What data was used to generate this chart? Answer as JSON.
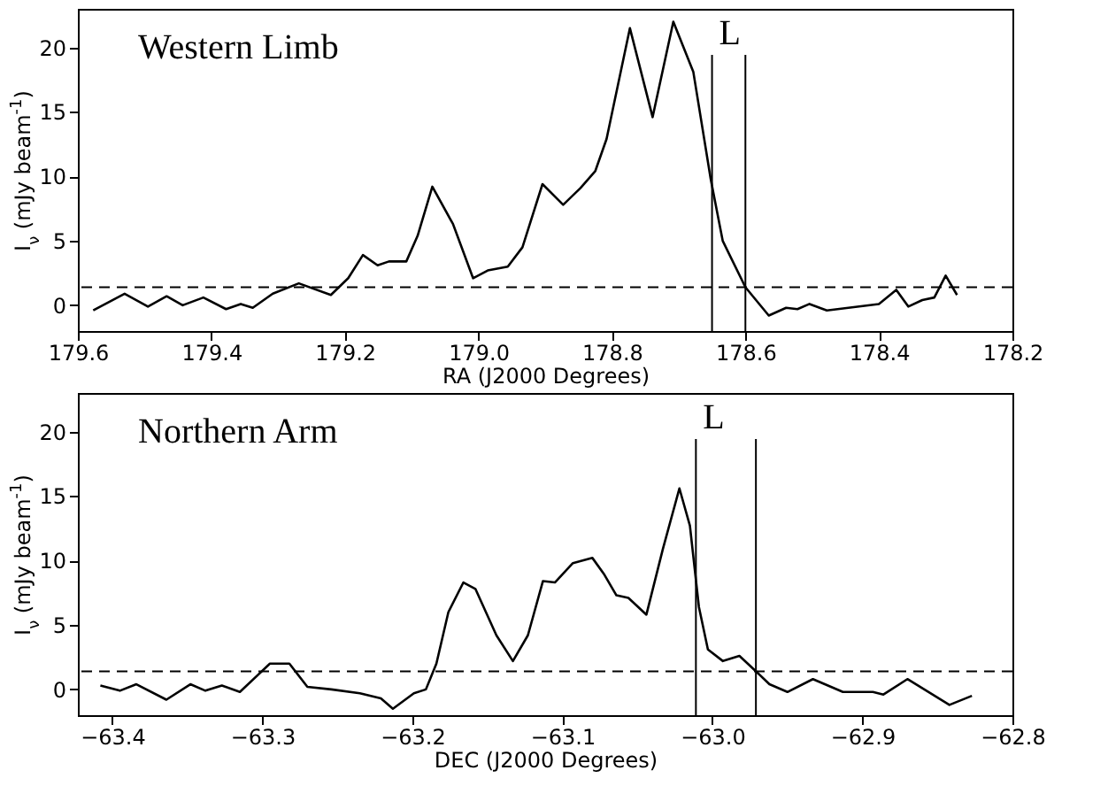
{
  "chart_data": [
    {
      "type": "line",
      "color": "#000000",
      "xlabel": "RA (J2000 Degrees)",
      "ylabel": "I$_{ν}$ (mJy beam$^{-1}$)",
      "x": [
        179.577,
        179.53,
        179.495,
        179.467,
        179.443,
        179.412,
        179.378,
        179.356,
        179.338,
        179.308,
        179.269,
        179.221,
        179.195,
        179.173,
        179.151,
        179.134,
        179.108,
        179.091,
        179.069,
        179.038,
        179.008,
        178.986,
        178.956,
        178.934,
        178.904,
        178.873,
        178.847,
        178.825,
        178.808,
        178.773,
        178.739,
        178.708,
        178.678,
        178.652,
        178.634,
        178.6,
        178.565,
        178.539,
        178.522,
        178.504,
        178.478,
        178.4,
        178.374,
        178.356,
        178.335,
        178.317,
        178.3,
        178.283
      ],
      "values": [
        -0.4,
        0.9,
        -0.1,
        0.7,
        0.0,
        0.6,
        -0.3,
        0.1,
        -0.2,
        0.9,
        1.7,
        0.8,
        2.1,
        3.9,
        3.1,
        3.4,
        3.4,
        5.4,
        9.2,
        6.3,
        2.1,
        2.7,
        3.0,
        4.5,
        9.4,
        7.8,
        9.1,
        10.4,
        12.9,
        21.5,
        14.6,
        22.0,
        18.1,
        9.8,
        5.0,
        1.4,
        -0.8,
        -0.2,
        -0.3,
        0.1,
        -0.4,
        0.1,
        1.2,
        -0.1,
        0.4,
        0.6,
        2.3,
        0.8
      ],
      "xlim": [
        179.6,
        178.2
      ],
      "xticks": [
        179.6,
        179.4,
        179.2,
        {
          "value": 179.0,
          "label": "179.0"
        },
        178.8,
        178.6,
        178.4,
        178.2
      ],
      "ylim": [
        -2,
        23
      ],
      "yticks": [
        0,
        5,
        10,
        15,
        20
      ],
      "grid": false,
      "ref_lines": [
        {
          "axis": "y",
          "value": 1.4,
          "line_style": "dashed"
        },
        {
          "axis": "x",
          "value": 178.65,
          "label": "L"
        },
        {
          "axis": "x",
          "value": 178.6
        }
      ],
      "annotations": [
        "Western Limb"
      ]
    },
    {
      "type": "line",
      "color": "#000000",
      "xlabel": "DEC (J2000 Degrees)",
      "ylabel": "I$_{ν}$ (mJy beam$^{-1}$)",
      "x": [
        -63.408,
        -63.395,
        -63.384,
        -63.364,
        -63.348,
        -63.338,
        -63.327,
        -63.315,
        -63.295,
        -63.282,
        -63.27,
        -63.254,
        -63.235,
        -63.221,
        -63.213,
        -63.199,
        -63.191,
        -63.184,
        -63.176,
        -63.166,
        -63.158,
        -63.144,
        -63.133,
        -63.123,
        -63.113,
        -63.105,
        -63.093,
        -63.08,
        -63.072,
        -63.064,
        -63.056,
        -63.044,
        -63.033,
        -63.022,
        -63.015,
        -63.009,
        -63.003,
        -62.993,
        -62.982,
        -62.97,
        -62.962,
        -62.95,
        -62.933,
        -62.913,
        -62.893,
        -62.886,
        -62.87,
        -62.842,
        -62.827
      ],
      "values": [
        0.3,
        -0.1,
        0.4,
        -0.8,
        0.4,
        -0.1,
        0.3,
        -0.2,
        2.0,
        2.0,
        0.2,
        0.0,
        -0.3,
        -0.7,
        -1.5,
        -0.3,
        0.0,
        2.0,
        6.0,
        8.3,
        7.8,
        4.2,
        2.2,
        4.2,
        8.4,
        8.3,
        9.8,
        10.2,
        8.9,
        7.3,
        7.1,
        5.8,
        10.9,
        15.6,
        12.7,
        6.4,
        3.1,
        2.2,
        2.6,
        1.3,
        0.4,
        -0.2,
        0.8,
        -0.2,
        -0.2,
        -0.4,
        0.8,
        -1.2,
        -0.5
      ],
      "xlim": [
        -63.423,
        -62.8
      ],
      "xticks": [
        {
          "value": -63.4,
          "label": "−63.4"
        },
        {
          "value": -63.3,
          "label": "−63.3"
        },
        {
          "value": -63.2,
          "label": "−63.2"
        },
        {
          "value": -63.1,
          "label": "−63.1"
        },
        {
          "value": -63.0,
          "label": "−63.0"
        },
        {
          "value": -62.9,
          "label": "−62.9"
        },
        {
          "value": -62.8,
          "label": "−62.8"
        }
      ],
      "ylim": [
        -2,
        23
      ],
      "yticks": [
        0,
        5,
        10,
        15,
        20
      ],
      "grid": false,
      "ref_lines": [
        {
          "axis": "y",
          "value": 1.4,
          "line_style": "dashed"
        },
        {
          "axis": "x",
          "value": -63.011,
          "label": "L"
        },
        {
          "axis": "x",
          "value": -62.971
        }
      ],
      "annotations": [
        "Northern Arm"
      ]
    }
  ]
}
